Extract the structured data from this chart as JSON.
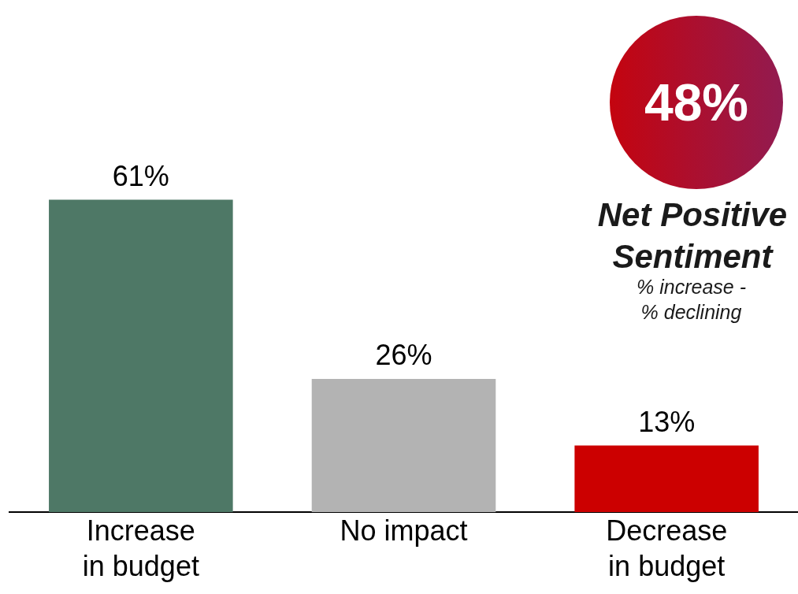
{
  "chart_data": {
    "type": "bar",
    "categories": [
      "Increase\nin budget",
      "No impact",
      "Decrease\nin budget"
    ],
    "values": [
      61,
      26,
      13
    ],
    "colors": [
      "#4e7866",
      "#b3b3b3",
      "#cc0000"
    ],
    "value_labels": [
      "61%",
      "26%",
      "13%"
    ],
    "ylim": [
      0,
      100
    ],
    "tick_labels": "x",
    "annotations": [
      "48%",
      "Net Positive Sentiment",
      "% increase - % declining"
    ]
  }
}
